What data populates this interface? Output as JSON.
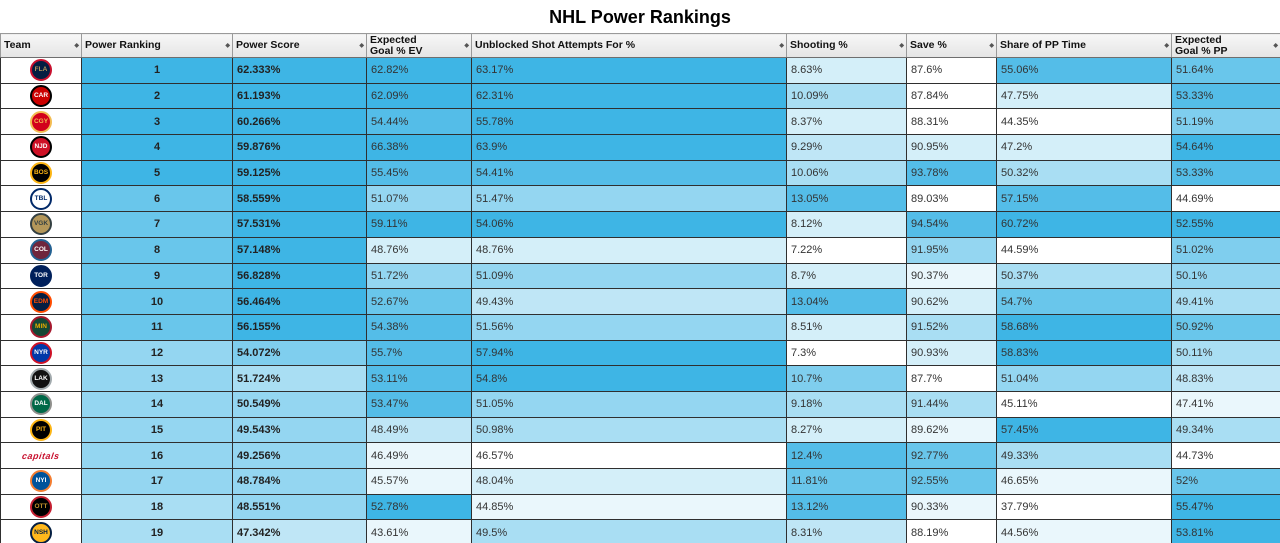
{
  "title": "NHL Power Rankings",
  "heat": {
    "base_color": "#29ade2",
    "background": "#ffffff"
  },
  "table": {
    "columns": [
      {
        "key": "team",
        "label": "Team"
      },
      {
        "key": "power-ranking",
        "label": "Power Ranking"
      },
      {
        "key": "power-score",
        "label": "Power Score"
      },
      {
        "key": "expected-goal-ev",
        "label": "Expected\nGoal % EV"
      },
      {
        "key": "unblocked-shot-attempts-for",
        "label": "Unblocked Shot Attempts For %"
      },
      {
        "key": "shooting",
        "label": "Shooting %"
      },
      {
        "key": "save",
        "label": "Save %"
      },
      {
        "key": "share-of-pp-time",
        "label": "Share of PP Time"
      },
      {
        "key": "expected-goal-pp",
        "label": "Expected\nGoal % PP"
      }
    ],
    "sort_icon": "◆",
    "rows": [
      {
        "team": "Florida Panthers",
        "abbr": "FLA",
        "logo": {
          "style": "circle",
          "bg": "#041e42",
          "ring": "#c8102e",
          "fg": "#b9975b"
        },
        "cells": [
          {
            "v": "1",
            "s": 9
          },
          {
            "v": "62.333%",
            "s": 9
          },
          {
            "v": "62.82%",
            "s": 9
          },
          {
            "v": "63.17%",
            "s": 9
          },
          {
            "v": "8.63%",
            "s": 2
          },
          {
            "v": "87.6%",
            "s": 0
          },
          {
            "v": "55.06%",
            "s": 8
          },
          {
            "v": "51.64%",
            "s": 7
          }
        ]
      },
      {
        "team": "Carolina Hurricanes",
        "abbr": "CAR",
        "logo": {
          "style": "circle",
          "bg": "#cc0000",
          "ring": "#000000",
          "fg": "#ffffff"
        },
        "cells": [
          {
            "v": "2",
            "s": 9
          },
          {
            "v": "61.193%",
            "s": 9
          },
          {
            "v": "62.09%",
            "s": 9
          },
          {
            "v": "62.31%",
            "s": 9
          },
          {
            "v": "10.09%",
            "s": 4
          },
          {
            "v": "87.84%",
            "s": 0
          },
          {
            "v": "47.75%",
            "s": 2
          },
          {
            "v": "53.33%",
            "s": 8
          }
        ]
      },
      {
        "team": "Calgary Flames",
        "abbr": "CGY",
        "logo": {
          "style": "circle",
          "bg": "#d2001c",
          "ring": "#f3bc52",
          "fg": "#f3bc52"
        },
        "cells": [
          {
            "v": "3",
            "s": 9
          },
          {
            "v": "60.266%",
            "s": 9
          },
          {
            "v": "54.44%",
            "s": 8
          },
          {
            "v": "55.78%",
            "s": 9
          },
          {
            "v": "8.37%",
            "s": 2
          },
          {
            "v": "88.31%",
            "s": 0
          },
          {
            "v": "44.35%",
            "s": 0
          },
          {
            "v": "51.19%",
            "s": 6
          }
        ]
      },
      {
        "team": "New Jersey Devils",
        "abbr": "NJD",
        "logo": {
          "style": "circle",
          "bg": "#ce1126",
          "ring": "#000000",
          "fg": "#ffffff"
        },
        "cells": [
          {
            "v": "4",
            "s": 9
          },
          {
            "v": "59.876%",
            "s": 9
          },
          {
            "v": "66.38%",
            "s": 9
          },
          {
            "v": "63.9%",
            "s": 9
          },
          {
            "v": "9.29%",
            "s": 3
          },
          {
            "v": "90.95%",
            "s": 2
          },
          {
            "v": "47.2%",
            "s": 2
          },
          {
            "v": "54.64%",
            "s": 9
          }
        ]
      },
      {
        "team": "Boston Bruins",
        "abbr": "BOS",
        "logo": {
          "style": "circle",
          "bg": "#000000",
          "ring": "#fcb514",
          "fg": "#fcb514"
        },
        "cells": [
          {
            "v": "5",
            "s": 9
          },
          {
            "v": "59.125%",
            "s": 9
          },
          {
            "v": "55.45%",
            "s": 8
          },
          {
            "v": "54.41%",
            "s": 8
          },
          {
            "v": "10.06%",
            "s": 4
          },
          {
            "v": "93.78%",
            "s": 8
          },
          {
            "v": "50.32%",
            "s": 4
          },
          {
            "v": "53.33%",
            "s": 8
          }
        ]
      },
      {
        "team": "Tampa Bay Lightning",
        "abbr": "TBL",
        "logo": {
          "style": "circle",
          "bg": "#ffffff",
          "ring": "#002868",
          "fg": "#002868"
        },
        "cells": [
          {
            "v": "6",
            "s": 7
          },
          {
            "v": "58.559%",
            "s": 9
          },
          {
            "v": "51.07%",
            "s": 5
          },
          {
            "v": "51.47%",
            "s": 5
          },
          {
            "v": "13.05%",
            "s": 8
          },
          {
            "v": "89.03%",
            "s": 0
          },
          {
            "v": "57.15%",
            "s": 8
          },
          {
            "v": "44.69%",
            "s": 0
          }
        ]
      },
      {
        "team": "Vegas Golden Knights",
        "abbr": "VGK",
        "logo": {
          "style": "circle",
          "bg": "#b4975a",
          "ring": "#333f42",
          "fg": "#333f42"
        },
        "cells": [
          {
            "v": "7",
            "s": 7
          },
          {
            "v": "57.531%",
            "s": 9
          },
          {
            "v": "59.11%",
            "s": 9
          },
          {
            "v": "54.06%",
            "s": 9
          },
          {
            "v": "8.12%",
            "s": 2
          },
          {
            "v": "94.54%",
            "s": 8
          },
          {
            "v": "60.72%",
            "s": 9
          },
          {
            "v": "52.55%",
            "s": 9
          }
        ]
      },
      {
        "team": "Colorado Avalanche",
        "abbr": "COL",
        "logo": {
          "style": "circle",
          "bg": "#6f263d",
          "ring": "#236192",
          "fg": "#ffffff"
        },
        "cells": [
          {
            "v": "8",
            "s": 7
          },
          {
            "v": "57.148%",
            "s": 9
          },
          {
            "v": "48.76%",
            "s": 2
          },
          {
            "v": "48.76%",
            "s": 2
          },
          {
            "v": "7.22%",
            "s": 0
          },
          {
            "v": "91.95%",
            "s": 5
          },
          {
            "v": "44.59%",
            "s": 0
          },
          {
            "v": "51.02%",
            "s": 6
          }
        ]
      },
      {
        "team": "Toronto Maple Leafs",
        "abbr": "TOR",
        "logo": {
          "style": "circle",
          "bg": "#00205b",
          "ring": "#00205b",
          "fg": "#ffffff"
        },
        "cells": [
          {
            "v": "9",
            "s": 7
          },
          {
            "v": "56.828%",
            "s": 9
          },
          {
            "v": "51.72%",
            "s": 5
          },
          {
            "v": "51.09%",
            "s": 5
          },
          {
            "v": "8.7%",
            "s": 2
          },
          {
            "v": "90.37%",
            "s": 1
          },
          {
            "v": "50.37%",
            "s": 4
          },
          {
            "v": "50.1%",
            "s": 5
          }
        ]
      },
      {
        "team": "Edmonton Oilers",
        "abbr": "EDM",
        "logo": {
          "style": "circle",
          "bg": "#041e42",
          "ring": "#ff4c00",
          "fg": "#ff4c00"
        },
        "cells": [
          {
            "v": "10",
            "s": 7
          },
          {
            "v": "56.464%",
            "s": 9
          },
          {
            "v": "52.67%",
            "s": 7
          },
          {
            "v": "49.43%",
            "s": 3
          },
          {
            "v": "13.04%",
            "s": 8
          },
          {
            "v": "90.62%",
            "s": 2
          },
          {
            "v": "54.7%",
            "s": 7
          },
          {
            "v": "49.41%",
            "s": 4
          }
        ]
      },
      {
        "team": "Minnesota Wild",
        "abbr": "MIN",
        "logo": {
          "style": "circle",
          "bg": "#154734",
          "ring": "#a6192e",
          "fg": "#eaaa00"
        },
        "cells": [
          {
            "v": "11",
            "s": 7
          },
          {
            "v": "56.155%",
            "s": 9
          },
          {
            "v": "54.38%",
            "s": 8
          },
          {
            "v": "51.56%",
            "s": 5
          },
          {
            "v": "8.51%",
            "s": 2
          },
          {
            "v": "91.52%",
            "s": 4
          },
          {
            "v": "58.68%",
            "s": 9
          },
          {
            "v": "50.92%",
            "s": 7
          }
        ]
      },
      {
        "team": "New York Rangers",
        "abbr": "NYR",
        "logo": {
          "style": "circle",
          "bg": "#0038a8",
          "ring": "#ce1126",
          "fg": "#ffffff"
        },
        "cells": [
          {
            "v": "12",
            "s": 5
          },
          {
            "v": "54.072%",
            "s": 6
          },
          {
            "v": "55.7%",
            "s": 8
          },
          {
            "v": "57.94%",
            "s": 9
          },
          {
            "v": "7.3%",
            "s": 0
          },
          {
            "v": "90.93%",
            "s": 2
          },
          {
            "v": "58.83%",
            "s": 9
          },
          {
            "v": "50.11%",
            "s": 4
          }
        ]
      },
      {
        "team": "Los Angeles Kings",
        "abbr": "LAK",
        "logo": {
          "style": "circle",
          "bg": "#111111",
          "ring": "#a2aaad",
          "fg": "#ffffff"
        },
        "cells": [
          {
            "v": "13",
            "s": 5
          },
          {
            "v": "51.724%",
            "s": 4
          },
          {
            "v": "53.11%",
            "s": 8
          },
          {
            "v": "54.8%",
            "s": 9
          },
          {
            "v": "10.7%",
            "s": 6
          },
          {
            "v": "87.7%",
            "s": 0
          },
          {
            "v": "51.04%",
            "s": 5
          },
          {
            "v": "48.83%",
            "s": 3
          }
        ]
      },
      {
        "team": "Dallas Stars",
        "abbr": "DAL",
        "logo": {
          "style": "circle",
          "bg": "#006847",
          "ring": "#8f8f8c",
          "fg": "#ffffff"
        },
        "cells": [
          {
            "v": "14",
            "s": 5
          },
          {
            "v": "50.549%",
            "s": 5
          },
          {
            "v": "53.47%",
            "s": 8
          },
          {
            "v": "51.05%",
            "s": 5
          },
          {
            "v": "9.18%",
            "s": 4
          },
          {
            "v": "91.44%",
            "s": 4
          },
          {
            "v": "45.11%",
            "s": 0
          },
          {
            "v": "47.41%",
            "s": 1
          }
        ]
      },
      {
        "team": "Pittsburgh Penguins",
        "abbr": "PIT",
        "logo": {
          "style": "circle",
          "bg": "#000000",
          "ring": "#fcb514",
          "fg": "#fcb514"
        },
        "cells": [
          {
            "v": "15",
            "s": 5
          },
          {
            "v": "49.543%",
            "s": 5
          },
          {
            "v": "48.49%",
            "s": 3
          },
          {
            "v": "50.98%",
            "s": 4
          },
          {
            "v": "8.27%",
            "s": 2
          },
          {
            "v": "89.62%",
            "s": 1
          },
          {
            "v": "57.45%",
            "s": 9
          },
          {
            "v": "49.34%",
            "s": 4
          }
        ]
      },
      {
        "team": "Washington Capitals",
        "abbr": "WSH",
        "logo": {
          "style": "script",
          "bg": "#ffffff",
          "ring": "#c8102e",
          "fg": "#c8102e",
          "script_text": "capitals"
        },
        "cells": [
          {
            "v": "16",
            "s": 5
          },
          {
            "v": "49.256%",
            "s": 5
          },
          {
            "v": "46.49%",
            "s": 1
          },
          {
            "v": "46.57%",
            "s": 0
          },
          {
            "v": "12.4%",
            "s": 8
          },
          {
            "v": "92.77%",
            "s": 7
          },
          {
            "v": "49.33%",
            "s": 4
          },
          {
            "v": "44.73%",
            "s": 0
          }
        ]
      },
      {
        "team": "New York Islanders",
        "abbr": "NYI",
        "logo": {
          "style": "circle",
          "bg": "#00539b",
          "ring": "#f47d30",
          "fg": "#ffffff"
        },
        "cells": [
          {
            "v": "17",
            "s": 5
          },
          {
            "v": "48.784%",
            "s": 5
          },
          {
            "v": "45.57%",
            "s": 1
          },
          {
            "v": "48.04%",
            "s": 2
          },
          {
            "v": "11.81%",
            "s": 7
          },
          {
            "v": "92.55%",
            "s": 7
          },
          {
            "v": "46.65%",
            "s": 1
          },
          {
            "v": "52%",
            "s": 7
          }
        ]
      },
      {
        "team": "Ottawa Senators",
        "abbr": "OTT",
        "logo": {
          "style": "circle",
          "bg": "#000000",
          "ring": "#c52032",
          "fg": "#c2912c"
        },
        "cells": [
          {
            "v": "18",
            "s": 4
          },
          {
            "v": "48.551%",
            "s": 5
          },
          {
            "v": "52.78%",
            "s": 9
          },
          {
            "v": "44.85%",
            "s": 1
          },
          {
            "v": "13.12%",
            "s": 8
          },
          {
            "v": "90.33%",
            "s": 1
          },
          {
            "v": "37.79%",
            "s": 0
          },
          {
            "v": "55.47%",
            "s": 9
          }
        ]
      },
      {
        "team": "Nashville Predators",
        "abbr": "NSH",
        "logo": {
          "style": "circle",
          "bg": "#ffb81c",
          "ring": "#041e42",
          "fg": "#041e42"
        },
        "cells": [
          {
            "v": "19",
            "s": 4
          },
          {
            "v": "47.342%",
            "s": 3
          },
          {
            "v": "43.61%",
            "s": 1
          },
          {
            "v": "49.5%",
            "s": 4
          },
          {
            "v": "8.31%",
            "s": 3
          },
          {
            "v": "88.19%",
            "s": 0
          },
          {
            "v": "44.56%",
            "s": 1
          },
          {
            "v": "53.81%",
            "s": 9
          }
        ]
      }
    ]
  }
}
